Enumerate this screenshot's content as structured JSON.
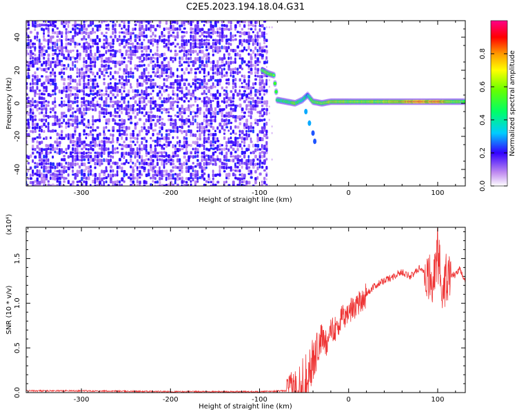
{
  "title": "C2E5.2023.194.18.04.G31",
  "chart_data": [
    {
      "type": "heatmap",
      "xlabel": "Height of straight line (km)",
      "ylabel": "Frequency (Hz)",
      "xlim": [
        -362,
        131
      ],
      "ylim": [
        -50,
        50
      ],
      "xticks": [
        -300,
        -200,
        -100,
        0,
        100
      ],
      "yticks": [
        -40,
        -20,
        0,
        20,
        40
      ],
      "noise_region_x": [
        -362,
        -92
      ],
      "signal_trace": [
        {
          "x": -97,
          "y": 20,
          "v": 0.55
        },
        {
          "x": -90,
          "y": 18,
          "v": 0.6
        },
        {
          "x": -84,
          "y": 17,
          "v": 0.55
        },
        {
          "x": -80,
          "y": 2,
          "v": 0.45
        },
        {
          "x": -70,
          "y": 1,
          "v": 0.5
        },
        {
          "x": -60,
          "y": 0,
          "v": 0.55
        },
        {
          "x": -52,
          "y": 2,
          "v": 0.45
        },
        {
          "x": -46,
          "y": 5,
          "v": 0.35
        },
        {
          "x": -40,
          "y": 1,
          "v": 0.55
        },
        {
          "x": -30,
          "y": 0,
          "v": 0.6
        },
        {
          "x": -20,
          "y": 1,
          "v": 0.7
        },
        {
          "x": -10,
          "y": 1,
          "v": 0.65
        },
        {
          "x": 0,
          "y": 1,
          "v": 0.6
        },
        {
          "x": 20,
          "y": 1,
          "v": 0.6
        },
        {
          "x": 40,
          "y": 1,
          "v": 0.65
        },
        {
          "x": 60,
          "y": 1,
          "v": 0.75
        },
        {
          "x": 75,
          "y": 1,
          "v": 0.9
        },
        {
          "x": 90,
          "y": 1,
          "v": 0.8
        },
        {
          "x": 100,
          "y": 1,
          "v": 0.9
        },
        {
          "x": 115,
          "y": 1,
          "v": 0.6
        },
        {
          "x": 131,
          "y": 1,
          "v": 0.55
        }
      ],
      "signal_branch": [
        {
          "x": -48,
          "y": -5,
          "v": 0.3
        },
        {
          "x": -44,
          "y": -12,
          "v": 0.3
        },
        {
          "x": -40,
          "y": -18,
          "v": 0.25
        },
        {
          "x": -38,
          "y": -23,
          "v": 0.25
        }
      ],
      "colorbar": {
        "label": "Normalized spectral amplitude",
        "range": [
          0,
          1
        ],
        "ticks": [
          0.0,
          0.2,
          0.4,
          0.6,
          0.8
        ]
      }
    },
    {
      "type": "line",
      "xlabel": "Height of straight line (km)",
      "ylabel": "SNR (10 * v/v)",
      "scale_note": "(x10⁴)",
      "xlim": [
        -362,
        131
      ],
      "ylim": [
        0,
        1.85
      ],
      "xticks": [
        -300,
        -200,
        -100,
        0,
        100
      ],
      "yticks": [
        0.0,
        0.5,
        1.0,
        1.5
      ],
      "color": "#ee3333",
      "series": [
        {
          "x": [
            -362,
            -300,
            -200,
            -100,
            -70,
            -60,
            -50,
            -40,
            -35,
            -30,
            -25,
            -20,
            -15,
            -10,
            -5,
            0,
            5,
            10,
            15,
            20,
            30,
            40,
            50,
            60,
            70,
            80,
            90,
            95,
            100,
            105,
            110,
            120,
            125,
            131
          ],
          "values": [
            0.02,
            0.02,
            0.01,
            0.01,
            0.02,
            0.05,
            0.15,
            0.35,
            0.5,
            0.6,
            0.55,
            0.75,
            0.7,
            0.8,
            0.85,
            0.9,
            0.95,
            1.0,
            1.05,
            1.1,
            1.2,
            1.25,
            1.3,
            1.35,
            1.3,
            1.4,
            1.3,
            1.2,
            1.5,
            1.1,
            1.3,
            1.32,
            1.38,
            1.25
          ]
        }
      ]
    }
  ]
}
